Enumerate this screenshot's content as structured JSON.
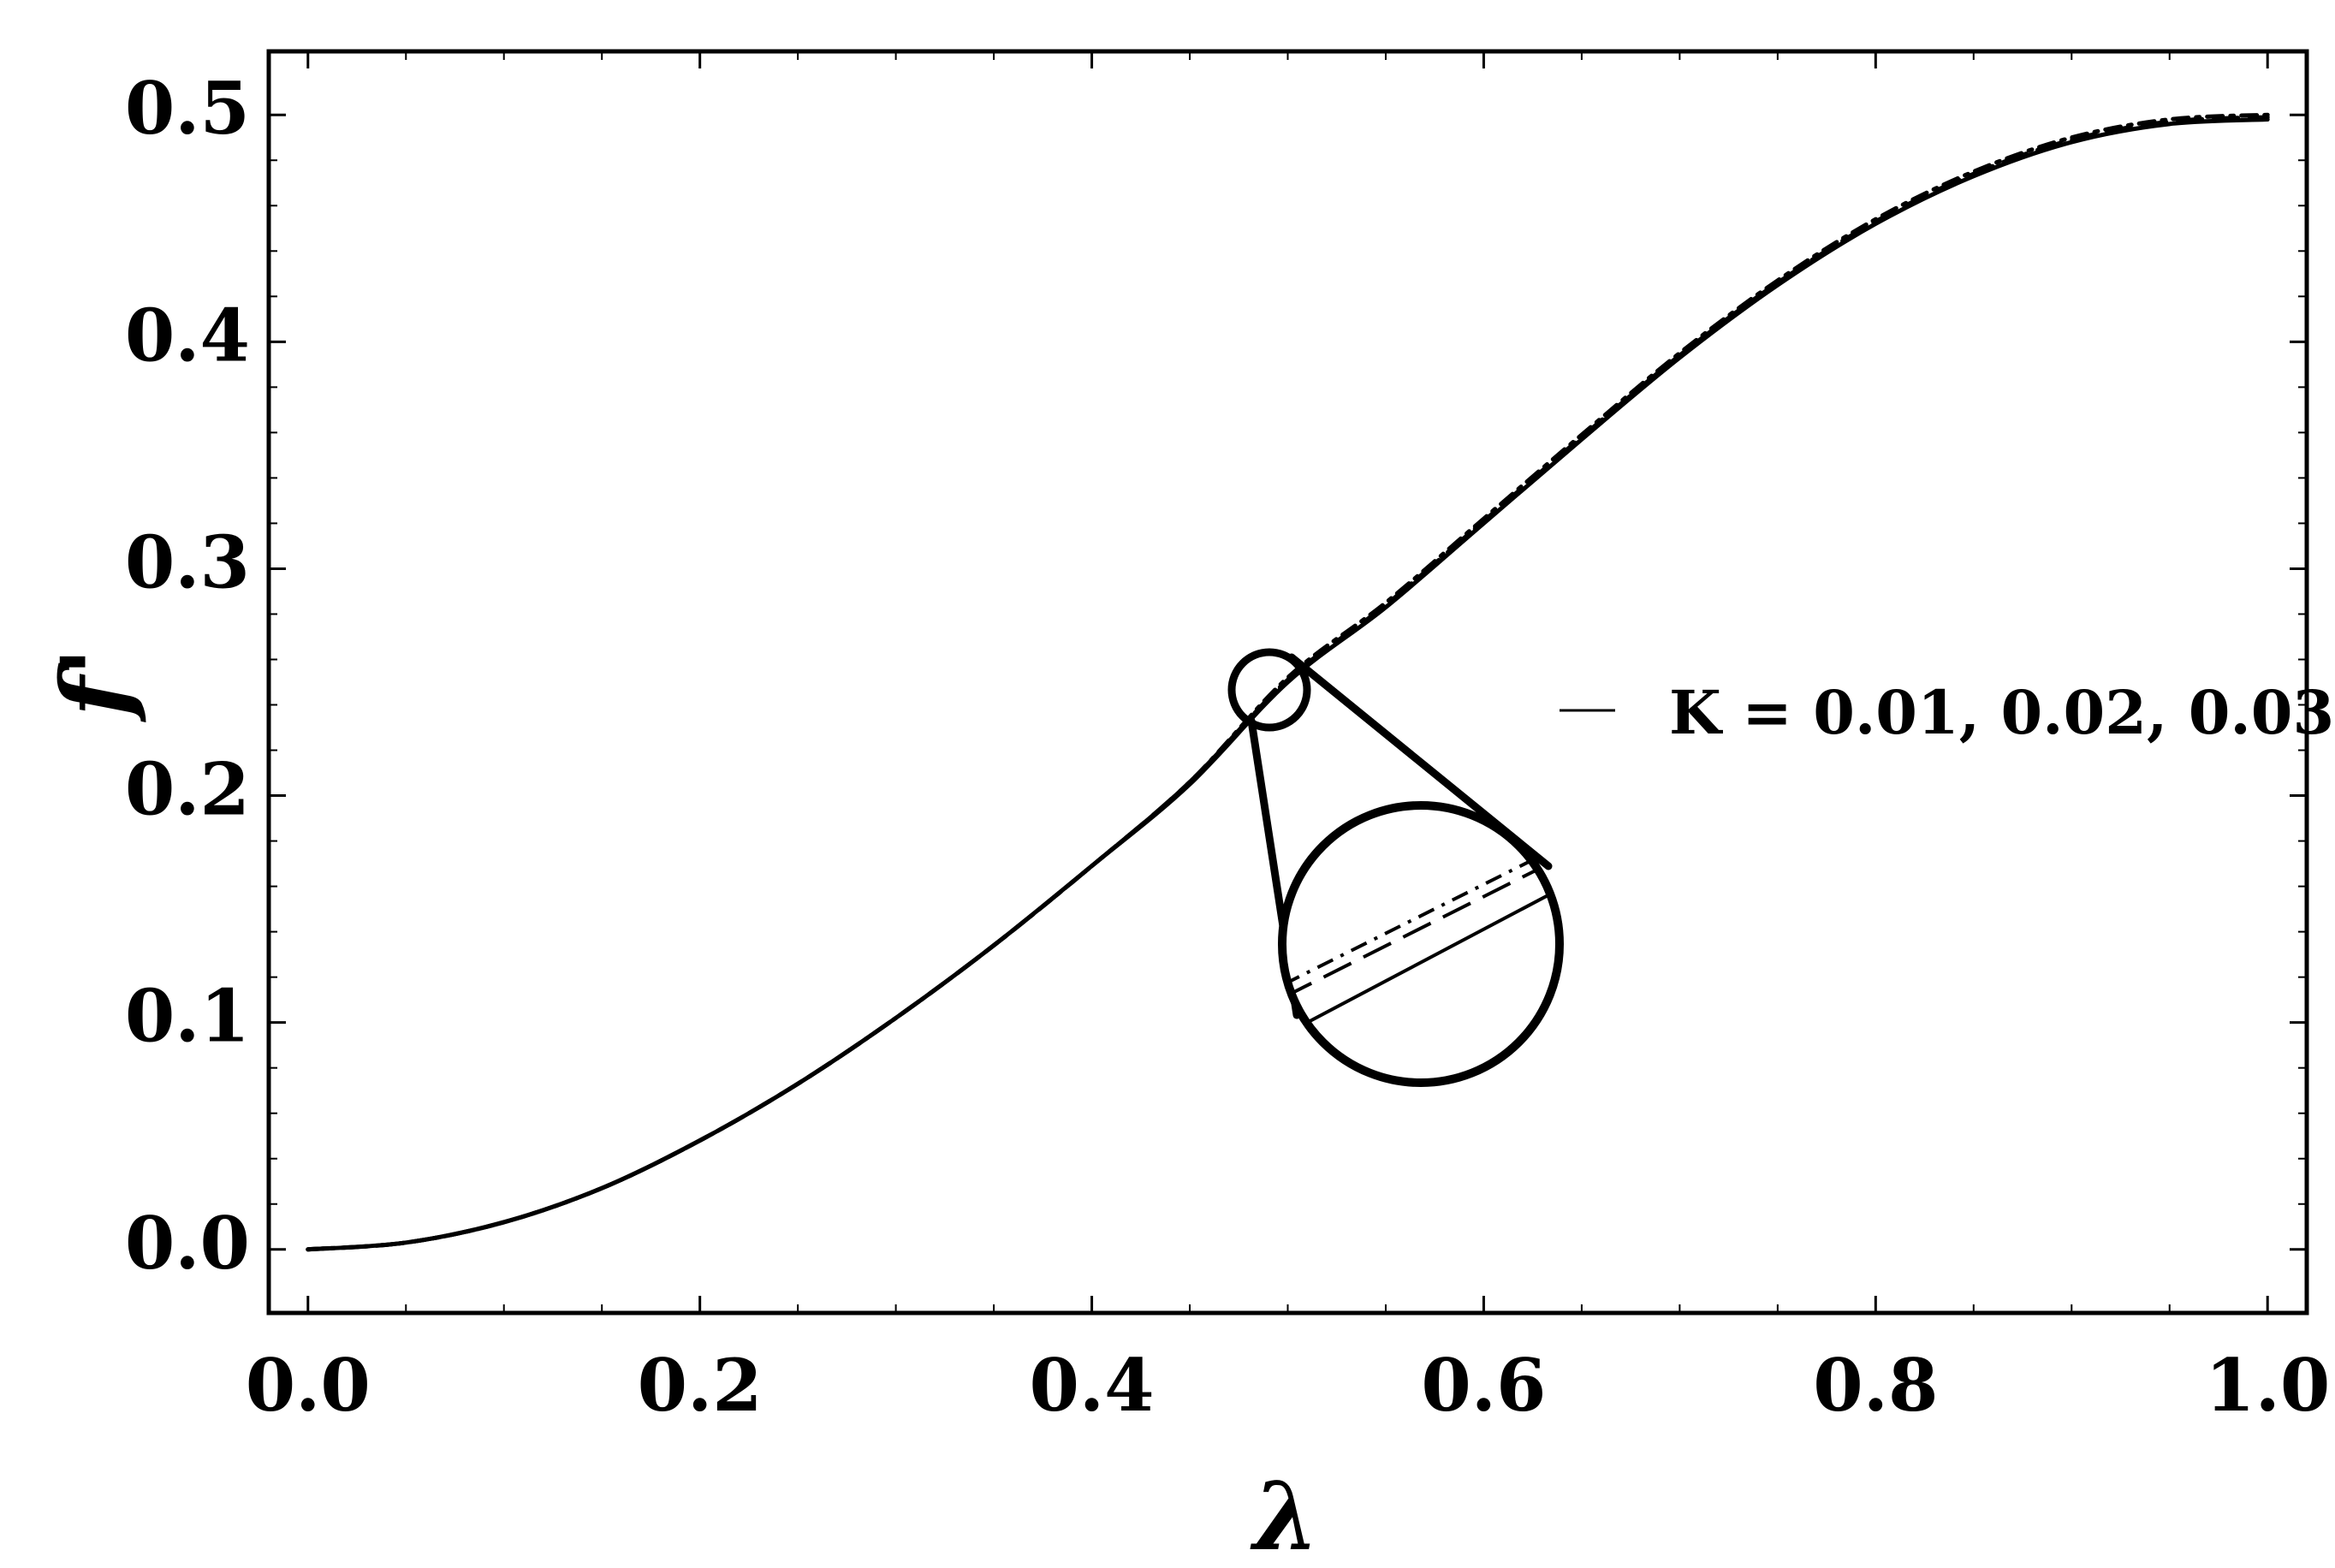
{
  "chart_data": {
    "type": "line",
    "xlabel": "λ",
    "ylabel": "f'",
    "xlim": [
      -0.02,
      1.02
    ],
    "ylim": [
      -0.028,
      0.528
    ],
    "x_ticks": [
      "0.0",
      "0.2",
      "0.4",
      "0.6",
      "0.8",
      "1.0"
    ],
    "y_ticks": [
      "0.0",
      "0.1",
      "0.2",
      "0.3",
      "0.4",
      "0.5"
    ],
    "grid": false,
    "legend": {
      "position": "right",
      "label": "K = 0.01, 0.02, 0.03"
    },
    "series": [
      {
        "style": "solid",
        "x": [
          0.0,
          0.05,
          0.1,
          0.15,
          0.2,
          0.25,
          0.3,
          0.35,
          0.4,
          0.45,
          0.5,
          0.55,
          0.6,
          0.65,
          0.7,
          0.75,
          0.8,
          0.85,
          0.9,
          0.95,
          1.0
        ],
        "y": [
          0.0,
          0.003,
          0.012,
          0.027,
          0.048,
          0.073,
          0.102,
          0.134,
          0.169,
          0.205,
          0.25,
          0.283,
          0.32,
          0.357,
          0.393,
          0.425,
          0.452,
          0.473,
          0.488,
          0.496,
          0.498
        ]
      },
      {
        "style": "dashed",
        "x": [
          0.0,
          0.05,
          0.1,
          0.15,
          0.2,
          0.25,
          0.3,
          0.35,
          0.4,
          0.45,
          0.5,
          0.55,
          0.6,
          0.65,
          0.7,
          0.75,
          0.8,
          0.85,
          0.9,
          0.95,
          1.0
        ],
        "y": [
          0.0,
          0.003,
          0.012,
          0.027,
          0.048,
          0.073,
          0.102,
          0.134,
          0.169,
          0.206,
          0.251,
          0.284,
          0.321,
          0.358,
          0.394,
          0.426,
          0.453,
          0.474,
          0.489,
          0.497,
          0.499
        ]
      },
      {
        "style": "dash-dot",
        "x": [
          0.0,
          0.05,
          0.1,
          0.15,
          0.2,
          0.25,
          0.3,
          0.35,
          0.4,
          0.45,
          0.5,
          0.55,
          0.6,
          0.65,
          0.7,
          0.75,
          0.8,
          0.85,
          0.9,
          0.95,
          1.0
        ],
        "y": [
          0.0,
          0.003,
          0.012,
          0.027,
          0.048,
          0.073,
          0.102,
          0.134,
          0.169,
          0.206,
          0.252,
          0.285,
          0.322,
          0.359,
          0.395,
          0.427,
          0.454,
          0.475,
          0.49,
          0.498,
          0.5
        ]
      }
    ],
    "annotation": {
      "type": "magnifier",
      "target": [
        0.49,
        0.249
      ]
    }
  }
}
